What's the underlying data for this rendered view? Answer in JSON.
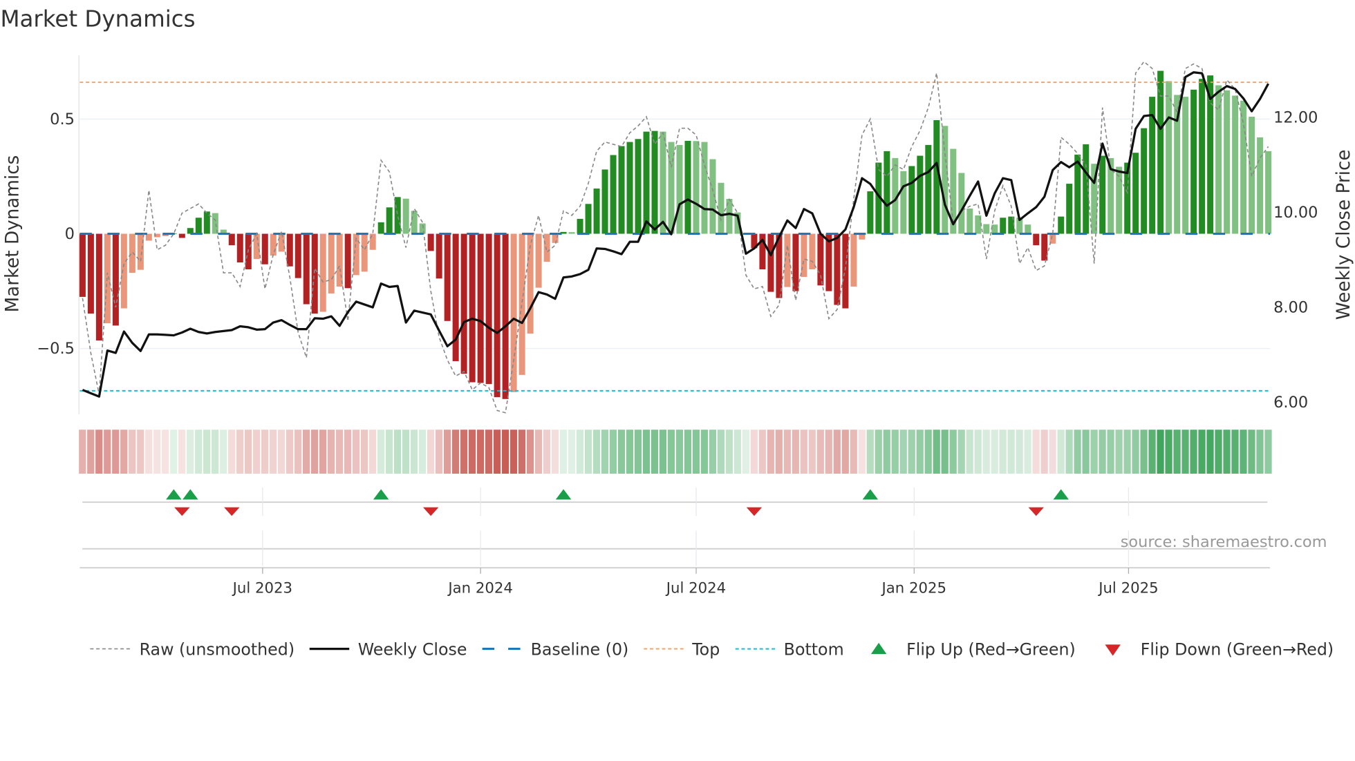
{
  "chart_data": {
    "type": "bar",
    "title": "Market Dynamics",
    "ylabel": "Market Dynamics",
    "ylabel_right": "Weekly Close Price",
    "ylim": [
      -0.786,
      0.778
    ],
    "ylim_right": [
      5.75,
      13.31
    ],
    "yticks": [
      {
        "v": 0.5,
        "label": "0.5"
      },
      {
        "v": 0,
        "label": "0"
      },
      {
        "v": -0.5,
        "label": "−0.5"
      }
    ],
    "yticks_right": [
      {
        "v": 12,
        "label": "12.00"
      },
      {
        "v": 10,
        "label": "10.00"
      },
      {
        "v": 8,
        "label": "8.00"
      },
      {
        "v": 6,
        "label": "6.00"
      }
    ],
    "xticks": [
      {
        "date": "2023-07-01",
        "label": "Jul 2023"
      },
      {
        "date": "2024-01-01",
        "label": "Jan 2024"
      },
      {
        "date": "2024-07-01",
        "label": "Jul 2024"
      },
      {
        "date": "2025-01-01",
        "label": "Jan 2025"
      },
      {
        "date": "2025-07-01",
        "label": "Jul 2025"
      }
    ],
    "x_start": "2023-01-30",
    "x_step_days": 7,
    "grid": true,
    "top_level": 0.66,
    "bottom_level": -0.684,
    "baseline": 0,
    "series": [
      {
        "name": "Market Dynamics (smoothed)",
        "values": [
          -0.275,
          -0.348,
          -0.465,
          -0.39,
          -0.4,
          -0.325,
          -0.17,
          -0.157,
          -0.03,
          -0.015,
          -0.01,
          0.002,
          -0.018,
          0.025,
          0.07,
          0.097,
          0.09,
          0.018,
          -0.05,
          -0.125,
          -0.155,
          -0.11,
          -0.133,
          -0.095,
          -0.078,
          -0.142,
          -0.193,
          -0.307,
          -0.348,
          -0.34,
          -0.26,
          -0.23,
          -0.237,
          -0.18,
          -0.165,
          -0.07,
          0.05,
          0.115,
          0.16,
          0.153,
          0.1,
          0.045,
          -0.075,
          -0.195,
          -0.38,
          -0.555,
          -0.61,
          -0.647,
          -0.65,
          -0.655,
          -0.712,
          -0.72,
          -0.69,
          -0.615,
          -0.435,
          -0.235,
          -0.122,
          -0.04,
          0.008,
          0.007,
          0.065,
          0.13,
          0.197,
          0.28,
          0.343,
          0.382,
          0.4,
          0.413,
          0.445,
          0.448,
          0.445,
          0.4,
          0.387,
          0.405,
          0.404,
          0.4,
          0.325,
          0.222,
          0.152,
          0.093,
          0.003,
          -0.063,
          -0.155,
          -0.253,
          -0.28,
          -0.232,
          -0.25,
          -0.188,
          -0.155,
          -0.225,
          -0.25,
          -0.31,
          -0.325,
          -0.23,
          -0.025,
          0.185,
          0.31,
          0.36,
          0.33,
          0.273,
          0.295,
          0.34,
          0.387,
          0.495,
          0.47,
          0.37,
          0.265,
          0.11,
          0.08,
          0.042,
          0.04,
          0.07,
          0.075,
          0.07,
          0.04,
          -0.05,
          -0.117,
          -0.043,
          0.075,
          0.218,
          0.345,
          0.39,
          0.305,
          0.34,
          0.33,
          0.292,
          0.31,
          0.353,
          0.46,
          0.597,
          0.71,
          0.665,
          0.605,
          0.597,
          0.628,
          0.675,
          0.69,
          0.647,
          0.625,
          0.602,
          0.58,
          0.51,
          0.42,
          0.36
        ]
      },
      {
        "name": "Raw (unsmoothed)",
        "values": [
          -0.28,
          -0.52,
          -0.7,
          -0.17,
          -0.32,
          -0.13,
          -0.08,
          -0.12,
          0.19,
          -0.07,
          -0.05,
          0.0,
          0.09,
          0.11,
          0.13,
          0.09,
          0.06,
          -0.17,
          -0.17,
          -0.23,
          -0.07,
          0.0,
          -0.24,
          -0.09,
          0.01,
          -0.19,
          -0.43,
          -0.54,
          -0.15,
          -0.21,
          -0.2,
          -0.14,
          -0.38,
          -0.02,
          -0.07,
          0.0,
          0.32,
          0.27,
          0.08,
          -0.06,
          0.11,
          0.05,
          -0.25,
          -0.45,
          -0.55,
          -0.62,
          -0.6,
          -0.68,
          -0.65,
          -0.67,
          -0.77,
          -0.78,
          -0.55,
          -0.3,
          -0.05,
          0.08,
          -0.08,
          -0.05,
          0.1,
          0.08,
          0.12,
          0.22,
          0.36,
          0.4,
          0.39,
          0.38,
          0.44,
          0.47,
          0.51,
          0.39,
          0.44,
          0.29,
          0.46,
          0.46,
          0.43,
          0.3,
          0.19,
          0.06,
          0.15,
          0.09,
          -0.18,
          -0.24,
          -0.23,
          -0.36,
          -0.31,
          -0.05,
          -0.29,
          -0.11,
          -0.12,
          -0.18,
          -0.37,
          -0.33,
          -0.15,
          0.15,
          0.43,
          0.5,
          0.28,
          0.25,
          0.3,
          0.28,
          0.38,
          0.45,
          0.55,
          0.7,
          0.35,
          0.05,
          0.1,
          0.12,
          0.13,
          -0.11,
          0.1,
          0.21,
          0.12,
          -0.13,
          -0.06,
          -0.16,
          -0.14,
          0.0,
          0.42,
          0.39,
          0.35,
          0.3,
          -0.13,
          0.55,
          0.28,
          0.25,
          0.18,
          0.7,
          0.75,
          0.72,
          0.6,
          0.6,
          0.53,
          0.72,
          0.74,
          0.72,
          0.57,
          0.54,
          0.67,
          0.63,
          0.48,
          0.25,
          0.33,
          0.38
        ]
      },
      {
        "name": "Weekly Close",
        "axis": "right",
        "values": [
          6.26,
          6.19,
          6.12,
          7.09,
          7.04,
          7.49,
          7.25,
          7.08,
          7.43,
          7.43,
          7.42,
          7.41,
          7.47,
          7.55,
          7.48,
          7.45,
          7.48,
          7.5,
          7.52,
          7.6,
          7.58,
          7.53,
          7.54,
          7.68,
          7.73,
          7.63,
          7.54,
          7.54,
          7.77,
          7.76,
          7.81,
          7.61,
          7.9,
          8.12,
          8.06,
          8.0,
          8.5,
          8.43,
          8.45,
          7.68,
          7.93,
          7.89,
          7.85,
          7.51,
          7.18,
          7.32,
          7.69,
          7.76,
          7.71,
          7.57,
          7.46,
          7.6,
          7.76,
          7.67,
          7.98,
          8.32,
          8.27,
          8.18,
          8.63,
          8.65,
          8.7,
          8.79,
          9.24,
          9.23,
          9.18,
          9.12,
          9.38,
          9.38,
          9.81,
          9.64,
          9.8,
          9.54,
          10.17,
          10.27,
          10.18,
          10.07,
          10.06,
          9.94,
          9.97,
          9.93,
          9.13,
          9.24,
          9.42,
          9.1,
          9.48,
          9.83,
          9.67,
          10.07,
          9.98,
          9.55,
          9.39,
          9.46,
          9.64,
          10.11,
          10.72,
          10.6,
          10.35,
          10.14,
          10.26,
          10.55,
          10.62,
          10.77,
          10.85,
          11.04,
          10.16,
          9.75,
          10.04,
          10.35,
          10.65,
          9.93,
          10.4,
          10.72,
          10.68,
          9.84,
          9.98,
          10.11,
          10.33,
          10.89,
          11.06,
          10.95,
          11.07,
          10.84,
          10.62,
          11.45,
          10.91,
          10.86,
          10.83,
          11.76,
          12.03,
          12.05,
          11.76,
          12.0,
          11.93,
          12.85,
          12.95,
          12.93,
          12.39,
          12.54,
          12.66,
          12.6,
          12.4,
          12.13,
          12.39,
          12.71
        ]
      }
    ],
    "flip_up_dates": [
      "2023-04-17",
      "2023-05-01",
      "2023-10-09",
      "2024-03-11",
      "2024-11-25",
      "2025-05-05"
    ],
    "flip_down_dates": [
      "2023-04-24",
      "2023-06-05",
      "2023-11-20",
      "2024-08-19",
      "2025-04-14"
    ],
    "legend": {
      "placement": "bottom",
      "items": [
        {
          "label": "Raw (unsmoothed)",
          "kind": "raw"
        },
        {
          "label": "Weekly Close",
          "kind": "close"
        },
        {
          "label": "Baseline (0)",
          "kind": "baseline"
        },
        {
          "label": "Top",
          "kind": "top"
        },
        {
          "label": "Bottom",
          "kind": "bottom"
        },
        {
          "label": "Flip Up (Red→Green)",
          "kind": "up"
        },
        {
          "label": "Flip Down (Green→Red)",
          "kind": "down"
        }
      ]
    },
    "source": "source: sharemaestro.com",
    "colors": {
      "pos_strong": "#228b22",
      "pos_weak": "#80c080",
      "neg_strong": "#b22222",
      "neg_weak": "#e9967a",
      "raw": "#888888",
      "close": "#111111",
      "baseline": "#1f77b4",
      "top": "#f0a060",
      "bottom": "#17becf",
      "flip_up": "#1a9e4a",
      "flip_down": "#d62728"
    }
  }
}
